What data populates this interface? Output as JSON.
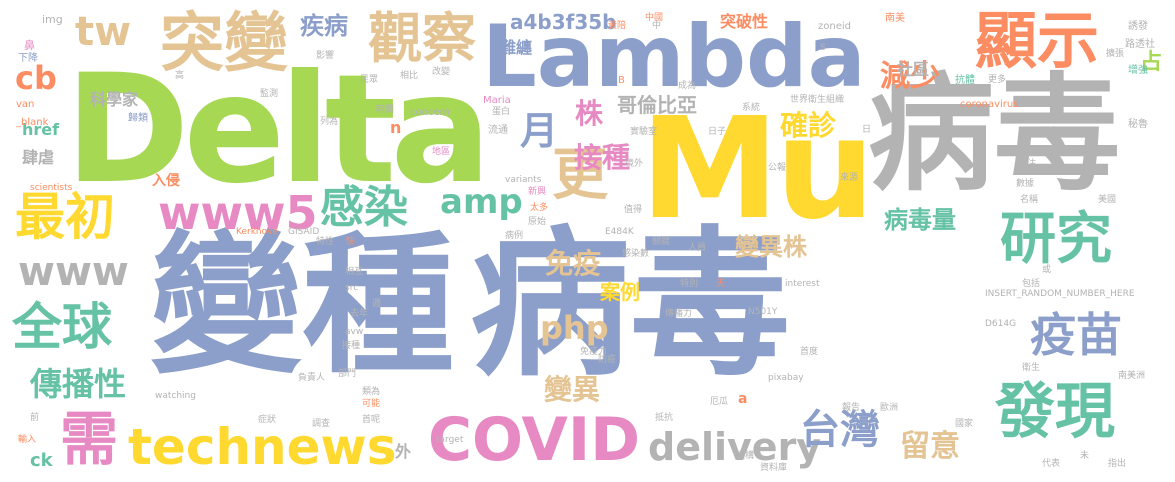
{
  "colors": {
    "blue": "#8c9fca",
    "green": "#a6d854",
    "gray": "#b3b3b3",
    "yellow": "#ffd92f",
    "teal": "#66c2a5",
    "orange": "#fc8d62",
    "pink": "#e78ac3",
    "tan": "#e5c494"
  },
  "words": {
    "bianzhong": "變種",
    "bingdu_big": "病毒",
    "delta": "Delta",
    "mu": "Mu",
    "bingdu_top": "病毒",
    "lambda": "Lambda",
    "tuchan": "突變",
    "xianshi": "顯示",
    "guancha": "觀察",
    "geng": "更",
    "covid": "COVID",
    "technews": "technews",
    "delivery": "delivery",
    "zuichu": "最初",
    "www5": "www5",
    "ganran": "感染",
    "www": "www",
    "quanqiu": "全球",
    "yanjiu": "研究",
    "yimiao": "疫苗",
    "faxian": "發現",
    "xu": "需",
    "taiwan": "台灣",
    "chuanboxing": "傳播性",
    "php": "php",
    "amp": "amp",
    "tw": "tw",
    "cb": "cb",
    "yue": "月",
    "zhu": "株",
    "jiezhong": "接種",
    "quezhen": "確診",
    "jianshao": "減少",
    "bingduliang": "病毒量",
    "bianyizhu": "變異株",
    "mianyi": "免疫",
    "anli": "案例",
    "bianyi": "變異",
    "liuyi": "留意",
    "jibing": "疾病",
    "gelunbiya": "哥倫比亞",
    "a4b": "a4b3f35b",
    "nanchan": "難纏",
    "kexuejia": "科學家",
    "tupoxing": "突破性",
    "shequ": "社區",
    "zhan": "占",
    "href": "href",
    "silue": "肆虐",
    "n": "n",
    "ruqin": "入侵",
    "ck": "ck",
    "wai": "外",
    "a": "a",
    "img": "img",
    "bi": "鼻",
    "xiafang": "下降",
    "van": "van",
    "blank": "_blank",
    "gui": "歸類",
    "zhongguo": "中國",
    "xiangu": "黃陪",
    "zoneid": "zoneid",
    "nanmei": "南美",
    "youfa": "誘發",
    "luxun": "路透社",
    "yingxiang": "影響",
    "gao": "高",
    "minzhong": "民眾",
    "xiangbi": "相比",
    "gaibian": "改變",
    "chengyu": "成為",
    "shijie": "世界衛生組織",
    "kangti": "抗體",
    "gengduo": "更多",
    "zengjia": "增強",
    "miqui": "秘魯",
    "shijian": "時間",
    "maria": "Maria",
    "concern": "concern",
    "liutong": "流通",
    "liewei": "列為",
    "xitong": "系統",
    "coronavirus": "coronavirus",
    "bianhua": "變化",
    "danbai": "蛋白",
    "shiyanshi": "實驗室",
    "rizi": "日子",
    "ri": "日",
    "di": "地區",
    "jingwai": "境外",
    "xinwen": "新興",
    "variants": "variants",
    "laiyuan": "來源",
    "gongzhi": "公報",
    "shuju": "數據",
    "guanzhu": "關注",
    "mingcheng": "名稱",
    "scientists": "scientists",
    "taiduo": "太多",
    "zhide": "值得",
    "yuanshi": "原始",
    "meiguo": "美國",
    "kerkhove": "Kerkhove",
    "gisaid": "GISAID",
    "texing": "特性",
    "kuai": "快",
    "e484k": "E484K",
    "bingli": "病例",
    "guanjian": "關鍵",
    "renyuan": "人員",
    "xianghu": "相互",
    "src": "src",
    "zhou": "週",
    "ganranshu": "感染數",
    "insert": "INSERT_RANDOM_NUMBER_HERE",
    "baokuo": "包括",
    "tebie": "特別",
    "tian": "天",
    "interest": "interest",
    "quni": "去年",
    "chuanbo": "傳播力",
    "n501y": "N501Y",
    "d614g": "D614G",
    "avw": "avw",
    "jiezhong2": "接種",
    "mianyili": "免疫力",
    "fangyi": "防疫",
    "shidu": "首度",
    "weisheng": "衛生",
    "nanmeizhou": "南美洲",
    "fuzeren": "負責人",
    "pixabay": "pixabay",
    "bumen": "部門",
    "leiwei": "類為",
    "kenong": "可能",
    "watching": "watching",
    "e": "厄瓜",
    "baogao": "報告",
    "ouzhou": "歐洲",
    "qian": "前",
    "zhengzhuang": "症狀",
    "diaocha": "調查",
    "shouci": "首呢",
    "kangdi": "抵抗",
    "guojia": "國家",
    "jiance": "監測",
    "shuru": "輸入",
    "target": "target",
    "jigou": "機構",
    "ziliaoku": "資料庫",
    "daibiao": "代表",
    "wei": "未",
    "zhichu": "指出",
    "zhongzhi": "中",
    "s": "S",
    "b": "B",
    "jiuyu": "擴張",
    "huo": "或"
  }
}
